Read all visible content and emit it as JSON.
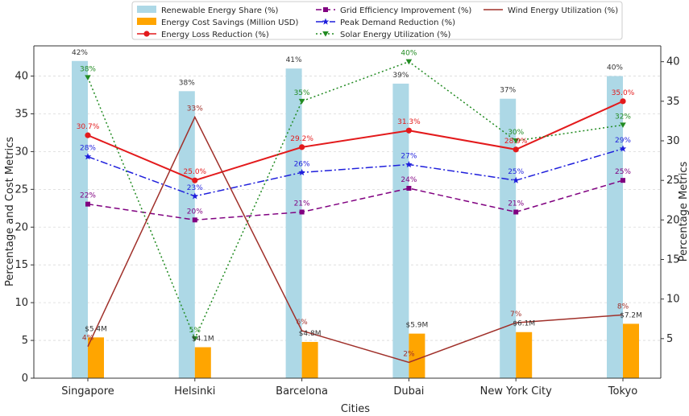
{
  "chart_data": {
    "type": "bar",
    "title": "",
    "xlabel": "Cities",
    "ylabel_left": "Percentage and Cost Metrics",
    "ylabel_right": "Percentage Metrics",
    "ylim_left": [
      0,
      44
    ],
    "ylim_right": [
      0,
      42
    ],
    "yticks_left": [
      0,
      5,
      10,
      15,
      20,
      25,
      30,
      35,
      40
    ],
    "yticks_right": [
      5,
      10,
      15,
      20,
      25,
      30,
      35,
      40
    ],
    "grid": true,
    "legend_position": "top-center",
    "categories": [
      "Singapore",
      "Helsinki",
      "Barcelona",
      "Dubai",
      "New York City",
      "Tokyo"
    ],
    "bar_series": [
      {
        "name": "Renewable Energy Share (%)",
        "color": "#add8e6",
        "axis": "left",
        "values": [
          42,
          38,
          41,
          39,
          37,
          40
        ],
        "labels": [
          "42%",
          "38%",
          "41%",
          "39%",
          "37%",
          "40%"
        ]
      },
      {
        "name": "Energy Cost Savings (Million USD)",
        "color": "#ffa500",
        "axis": "left",
        "values": [
          5.4,
          4.1,
          4.8,
          5.9,
          6.1,
          7.2
        ],
        "labels": [
          "$5.4M",
          "$4.1M",
          "$4.8M",
          "$5.9M",
          "$6.1M",
          "$7.2M"
        ]
      }
    ],
    "line_series": [
      {
        "name": "Energy Loss Reduction (%)",
        "color": "#e31a1c",
        "style": "solid",
        "marker": "circle",
        "axis": "right",
        "values": [
          30.7,
          25.0,
          29.2,
          31.3,
          28.9,
          35.0
        ],
        "labels": [
          "30.7%",
          "25.0%",
          "29.2%",
          "31.3%",
          "28.9%",
          "35.0%"
        ]
      },
      {
        "name": "Grid Efficiency Improvement (%)",
        "color": "#800080",
        "style": "dashed",
        "marker": "square",
        "axis": "right",
        "values": [
          22,
          20,
          21,
          24,
          21,
          25
        ],
        "labels": [
          "22%",
          "20%",
          "21%",
          "24%",
          "21%",
          "25%"
        ]
      },
      {
        "name": "Peak Demand Reduction (%)",
        "color": "#1f1fdc",
        "style": "dashdot",
        "marker": "star",
        "axis": "right",
        "values": [
          28,
          23,
          26,
          27,
          25,
          29
        ],
        "labels": [
          "28%",
          "23%",
          "26%",
          "27%",
          "25%",
          "29%"
        ]
      },
      {
        "name": "Solar Energy Utilization (%)",
        "color": "#228b22",
        "style": "dotted",
        "marker": "triangle-down",
        "axis": "right",
        "values": [
          38,
          5,
          35,
          40,
          30,
          32
        ],
        "labels": [
          "38%",
          "5%",
          "35%",
          "40%",
          "30%",
          "32%"
        ]
      },
      {
        "name": "Wind Energy Utilization (%)",
        "color": "#a0302a",
        "style": "solid",
        "marker": "none",
        "axis": "right",
        "values": [
          4,
          33,
          6,
          2,
          7,
          8
        ],
        "labels": [
          "4%",
          "33%",
          "6%",
          "2%",
          "7%",
          "8%"
        ]
      }
    ]
  },
  "legend": {
    "items": [
      {
        "label": "Renewable Energy Share (%)",
        "kind": "bar",
        "color": "#add8e6"
      },
      {
        "label": "Energy Cost Savings (Million USD)",
        "kind": "bar",
        "color": "#ffa500"
      },
      {
        "label": "Energy Loss Reduction (%)",
        "kind": "line",
        "color": "#e31a1c",
        "style": "solid",
        "marker": "circle"
      },
      {
        "label": "Grid Efficiency Improvement (%)",
        "kind": "line",
        "color": "#800080",
        "style": "dashed",
        "marker": "square"
      },
      {
        "label": "Peak Demand Reduction (%)",
        "kind": "line",
        "color": "#1f1fdc",
        "style": "dashdot",
        "marker": "star"
      },
      {
        "label": "Solar Energy Utilization (%)",
        "kind": "line",
        "color": "#228b22",
        "style": "dotted",
        "marker": "triangle-down"
      },
      {
        "label": "Wind Energy Utilization (%)",
        "kind": "line",
        "color": "#a0302a",
        "style": "solid",
        "marker": "none"
      }
    ]
  }
}
